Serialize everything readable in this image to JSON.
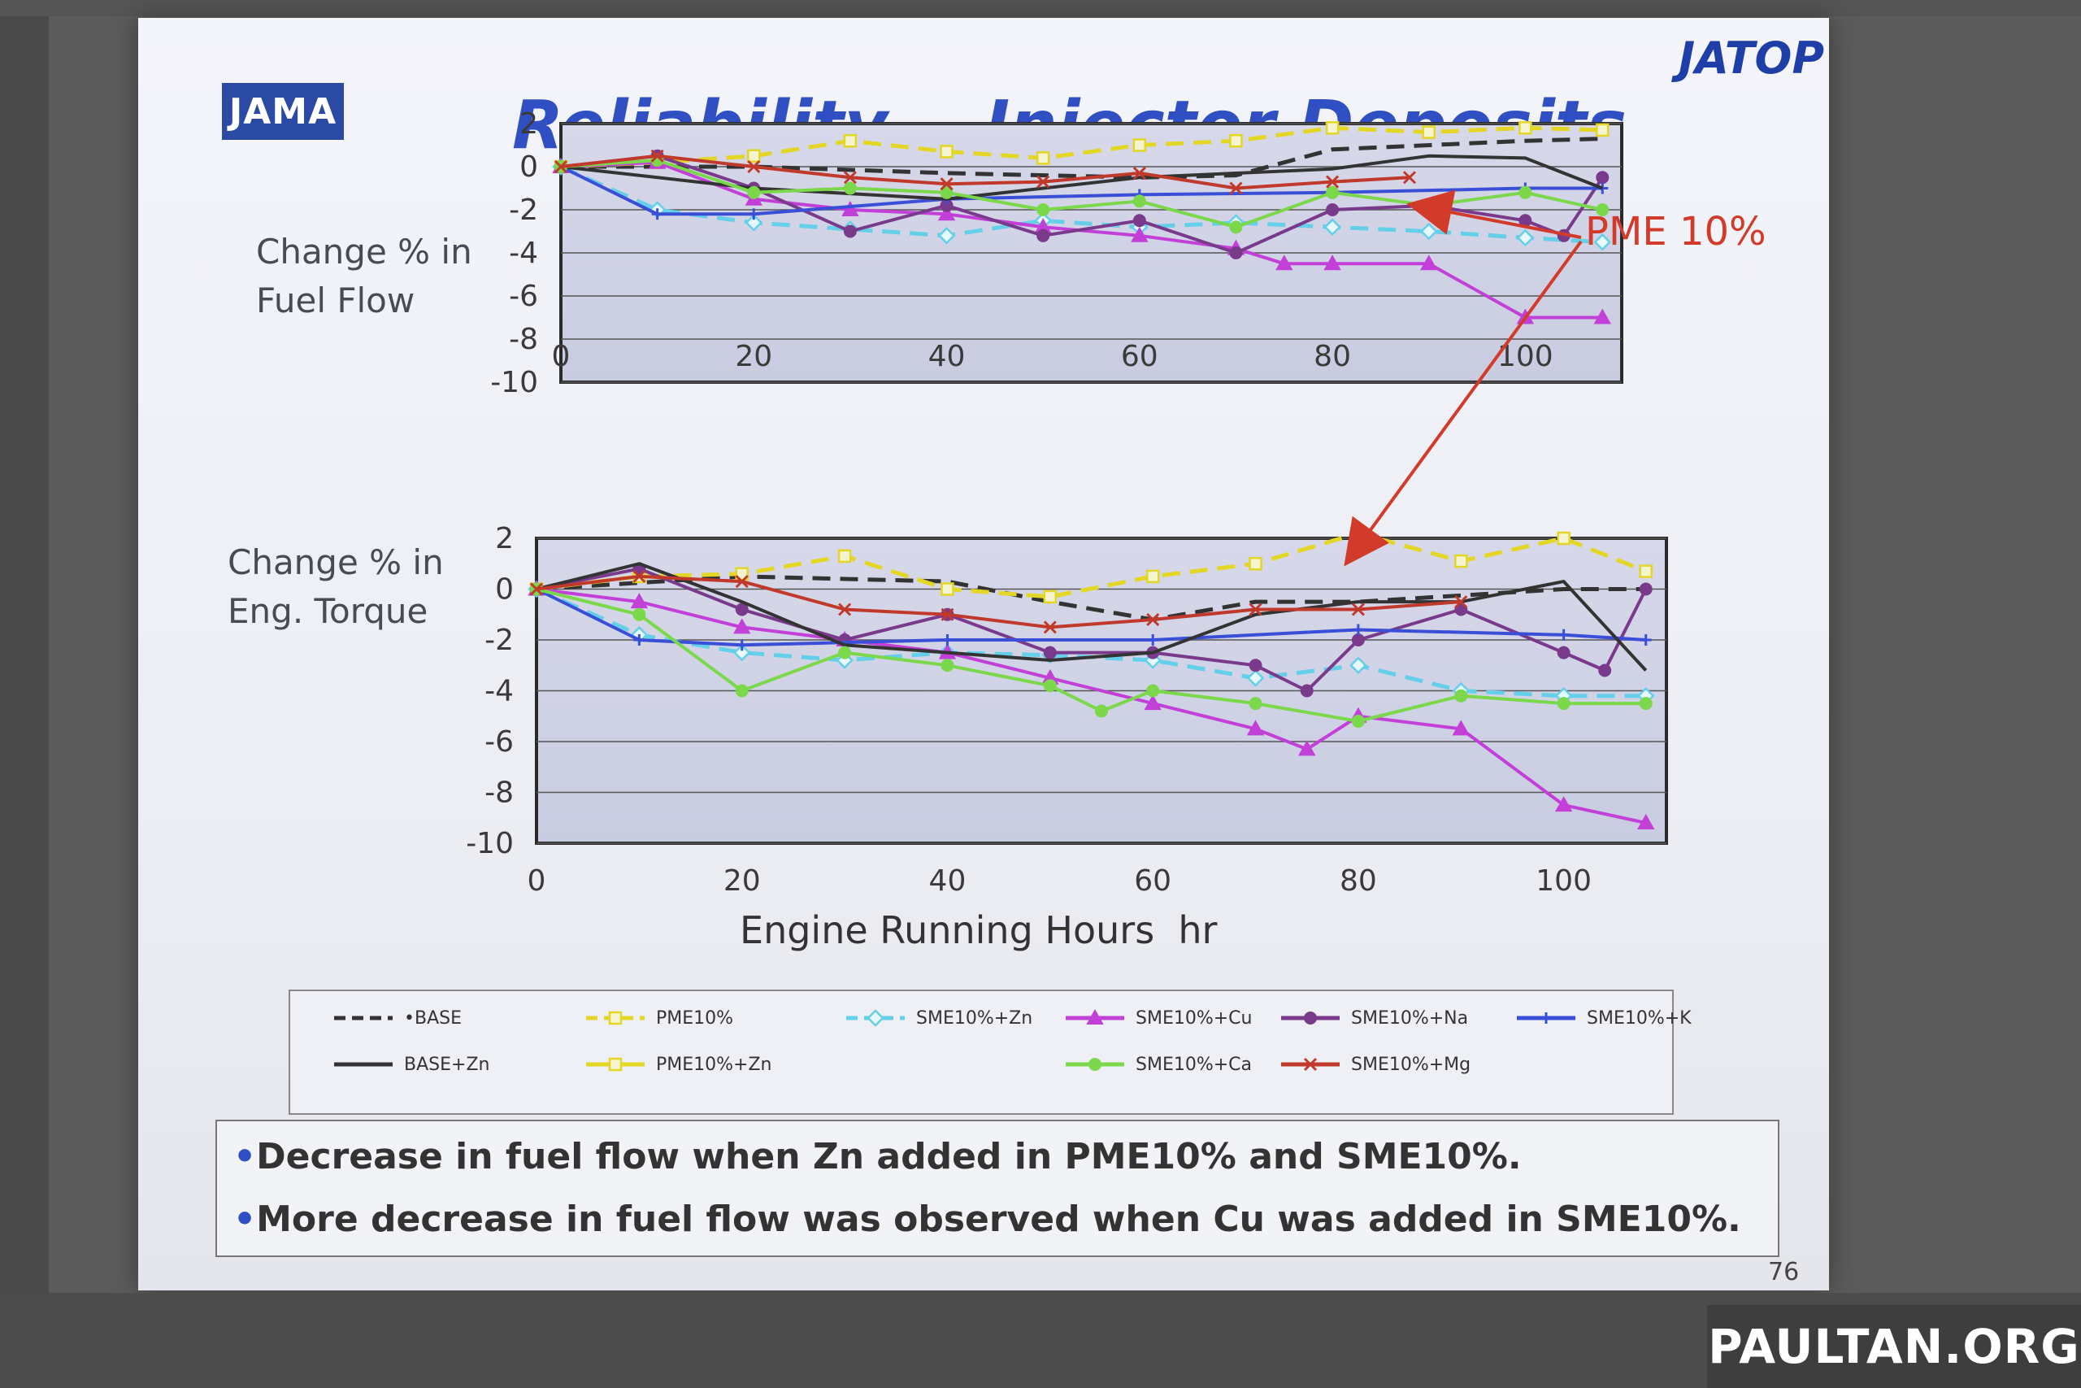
{
  "slide": {
    "logo_left": "JAMA",
    "logo_right": "JATOP",
    "title": "Reliability  - Injector Deposits",
    "page_number": "76",
    "annotation": "PME 10%",
    "notes": [
      "Decrease in fuel flow when Zn added in PME10% and SME10%.",
      "More decrease in fuel flow was observed when Cu was added in SME10%."
    ],
    "bullet": "•"
  },
  "watermark": "PAULTAN.ORG",
  "colors": {
    "BASE": "#333333",
    "PME10": "#e3d624",
    "SME_Zn": "#64cfe8",
    "SME_Cu": "#c240d8",
    "SME_Na": "#7a3a8c",
    "SME_K": "#3a4fd8",
    "SME_Ca": "#7ad84a",
    "SME_Mg": "#c0392b",
    "annotation": "#d23a2a"
  },
  "legend": [
    {
      "key": "BASE",
      "label": "•BASE",
      "style": "dashed",
      "marker": "none"
    },
    {
      "key": "PME10",
      "label": "PME10%",
      "style": "dashed",
      "marker": "square"
    },
    {
      "key": "SME_Zn",
      "label": "SME10%+Zn",
      "style": "dashed",
      "marker": "diamond"
    },
    {
      "key": "SME_Cu",
      "label": "SME10%+Cu",
      "style": "solid",
      "marker": "triangle"
    },
    {
      "key": "SME_Na",
      "label": "SME10%+Na",
      "style": "solid",
      "marker": "circle"
    },
    {
      "key": "SME_K",
      "label": "SME10%+K",
      "style": "solid",
      "marker": "plus"
    },
    {
      "key": "BASE",
      "label": "BASE+Zn",
      "style": "solid",
      "marker": "none"
    },
    {
      "key": "PME10",
      "label": "PME10%+Zn",
      "style": "solid",
      "marker": "square"
    },
    {
      "key": "SME_Ca",
      "label": "SME10%+Ca",
      "style": "solid",
      "marker": "circle"
    },
    {
      "key": "SME_Mg",
      "label": "SME10%+Mg",
      "style": "solid",
      "marker": "cross"
    }
  ],
  "chart_data": [
    {
      "type": "line",
      "ylabel": "Change % in\nFuel Flow",
      "xlabel": "",
      "xlim": [
        0,
        110
      ],
      "ylim": [
        -10,
        2
      ],
      "xticks": [
        0,
        20,
        40,
        60,
        80,
        100
      ],
      "yticks": [
        2,
        0,
        -2,
        -4,
        -6,
        -8,
        -10
      ],
      "series": [
        {
          "name": "•BASE",
          "key": "BASE",
          "style": "dashed",
          "marker": "none",
          "x": [
            0,
            20,
            40,
            60,
            70,
            80,
            100,
            108
          ],
          "y": [
            0,
            0,
            -0.3,
            -0.5,
            -0.4,
            0.8,
            1.2,
            1.3
          ]
        },
        {
          "name": "PME10%",
          "key": "PME10",
          "style": "dashed",
          "marker": "square",
          "x": [
            0,
            10,
            20,
            30,
            40,
            50,
            60,
            70,
            80,
            90,
            100,
            108
          ],
          "y": [
            0,
            0.2,
            0.5,
            1.2,
            0.7,
            0.4,
            1.0,
            1.2,
            1.8,
            1.6,
            1.8,
            1.7
          ]
        },
        {
          "name": "SME10%+Zn",
          "key": "SME_Zn",
          "style": "dashed",
          "marker": "diamond",
          "x": [
            0,
            10,
            20,
            30,
            40,
            50,
            60,
            70,
            80,
            90,
            100,
            108
          ],
          "y": [
            0,
            -2.0,
            -2.6,
            -2.9,
            -3.2,
            -2.5,
            -2.8,
            -2.6,
            -2.8,
            -3.0,
            -3.3,
            -3.5
          ]
        },
        {
          "name": "SME10%+Cu",
          "key": "SME_Cu",
          "style": "solid",
          "marker": "triangle",
          "x": [
            0,
            10,
            20,
            30,
            40,
            50,
            60,
            70,
            75,
            80,
            90,
            100,
            108
          ],
          "y": [
            0,
            0.2,
            -1.5,
            -2.0,
            -2.2,
            -2.8,
            -3.2,
            -3.8,
            -4.5,
            -4.5,
            -4.5,
            -7.0,
            -7.0
          ]
        },
        {
          "name": "SME10%+Na",
          "key": "SME_Na",
          "style": "solid",
          "marker": "circle",
          "x": [
            0,
            10,
            20,
            30,
            40,
            50,
            60,
            70,
            80,
            90,
            100,
            104,
            108
          ],
          "y": [
            0,
            0.5,
            -1.0,
            -3.0,
            -1.8,
            -3.2,
            -2.5,
            -4.0,
            -2.0,
            -1.8,
            -2.5,
            -3.2,
            -0.5
          ]
        },
        {
          "name": "SME10%+K",
          "key": "SME_K",
          "style": "solid",
          "marker": "plus",
          "x": [
            0,
            10,
            20,
            40,
            60,
            80,
            100,
            108
          ],
          "y": [
            0,
            -2.2,
            -2.2,
            -1.5,
            -1.3,
            -1.2,
            -1.0,
            -1.0
          ]
        },
        {
          "name": "BASE+Zn",
          "key": "BASE",
          "style": "solid",
          "marker": "none",
          "x": [
            0,
            20,
            40,
            60,
            80,
            90,
            100,
            108
          ],
          "y": [
            0,
            -1.0,
            -1.5,
            -0.5,
            -0.1,
            0.5,
            0.4,
            -1.0
          ]
        },
        {
          "name": "SME10%+Ca",
          "key": "SME_Ca",
          "style": "solid",
          "marker": "circle",
          "x": [
            0,
            10,
            20,
            30,
            40,
            50,
            60,
            70,
            80,
            90,
            100,
            108
          ],
          "y": [
            0,
            0.3,
            -1.2,
            -1.0,
            -1.2,
            -2.0,
            -1.6,
            -2.8,
            -1.2,
            -1.8,
            -1.2,
            -2.0
          ]
        },
        {
          "name": "SME10%+Mg",
          "key": "SME_Mg",
          "style": "solid",
          "marker": "cross",
          "x": [
            0,
            10,
            20,
            30,
            40,
            50,
            60,
            70,
            80,
            88
          ],
          "y": [
            0,
            0.5,
            0.0,
            -0.5,
            -0.8,
            -0.7,
            -0.3,
            -1.0,
            -0.7,
            -0.5
          ]
        }
      ]
    },
    {
      "type": "line",
      "ylabel": "Change % in\nEng. Torque",
      "xlabel": "Engine Running Hours  hr",
      "xlim": [
        0,
        110
      ],
      "ylim": [
        -10,
        2
      ],
      "xticks": [
        0,
        20,
        40,
        60,
        80,
        100
      ],
      "yticks": [
        2,
        0,
        -2,
        -4,
        -6,
        -8,
        -10
      ],
      "series": [
        {
          "name": "•BASE",
          "key": "BASE",
          "style": "dashed",
          "marker": "none",
          "x": [
            0,
            20,
            40,
            50,
            60,
            70,
            80,
            100,
            108
          ],
          "y": [
            0,
            0.5,
            0.3,
            -0.5,
            -1.2,
            -0.5,
            -0.5,
            0.0,
            0.0
          ]
        },
        {
          "name": "PME10%",
          "key": "PME10",
          "style": "dashed",
          "marker": "square",
          "x": [
            0,
            10,
            20,
            30,
            40,
            50,
            60,
            70,
            80,
            90,
            100,
            108
          ],
          "y": [
            0,
            0.5,
            0.6,
            1.3,
            0.0,
            -0.3,
            0.5,
            1.0,
            2.2,
            1.1,
            2.0,
            0.7
          ]
        },
        {
          "name": "SME10%+Zn",
          "key": "SME_Zn",
          "style": "dashed",
          "marker": "diamond",
          "x": [
            0,
            10,
            20,
            30,
            40,
            50,
            60,
            70,
            80,
            90,
            100,
            108
          ],
          "y": [
            0,
            -1.8,
            -2.5,
            -2.8,
            -2.5,
            -2.6,
            -2.8,
            -3.5,
            -3.0,
            -4.0,
            -4.2,
            -4.2
          ]
        },
        {
          "name": "SME10%+Cu",
          "key": "SME_Cu",
          "style": "solid",
          "marker": "triangle",
          "x": [
            0,
            10,
            20,
            30,
            40,
            50,
            60,
            70,
            75,
            80,
            90,
            100,
            108
          ],
          "y": [
            0,
            -0.5,
            -1.5,
            -2.0,
            -2.5,
            -3.5,
            -4.5,
            -5.5,
            -6.3,
            -5.0,
            -5.5,
            -8.5,
            -9.2
          ]
        },
        {
          "name": "SME10%+Na",
          "key": "SME_Na",
          "style": "solid",
          "marker": "circle",
          "x": [
            0,
            10,
            20,
            30,
            40,
            50,
            60,
            70,
            75,
            80,
            90,
            100,
            104,
            108
          ],
          "y": [
            0,
            0.8,
            -0.8,
            -2.0,
            -1.0,
            -2.5,
            -2.5,
            -3.0,
            -4.0,
            -2.0,
            -0.8,
            -2.5,
            -3.2,
            0.0
          ]
        },
        {
          "name": "SME10%+K",
          "key": "SME_K",
          "style": "solid",
          "marker": "plus",
          "x": [
            0,
            10,
            20,
            40,
            60,
            80,
            100,
            108
          ],
          "y": [
            0,
            -2.0,
            -2.2,
            -2.0,
            -2.0,
            -1.6,
            -1.8,
            -2.0
          ]
        },
        {
          "name": "BASE+Zn",
          "key": "BASE",
          "style": "solid",
          "marker": "none",
          "x": [
            0,
            10,
            20,
            30,
            40,
            50,
            60,
            70,
            80,
            90,
            100,
            108
          ],
          "y": [
            0,
            1.0,
            -0.5,
            -2.2,
            -2.5,
            -2.8,
            -2.5,
            -1.0,
            -0.5,
            -0.5,
            0.3,
            -3.2
          ]
        },
        {
          "name": "SME10%+Ca",
          "key": "SME_Ca",
          "style": "solid",
          "marker": "circle",
          "x": [
            0,
            10,
            20,
            30,
            40,
            50,
            55,
            60,
            70,
            80,
            90,
            100,
            108
          ],
          "y": [
            0,
            -1.0,
            -4.0,
            -2.5,
            -3.0,
            -3.8,
            -4.8,
            -4.0,
            -4.5,
            -5.2,
            -4.2,
            -4.5,
            -4.5
          ]
        },
        {
          "name": "SME10%+Mg",
          "key": "SME_Mg",
          "style": "solid",
          "marker": "cross",
          "x": [
            0,
            10,
            20,
            30,
            40,
            50,
            60,
            70,
            80,
            90
          ],
          "y": [
            0,
            0.5,
            0.3,
            -0.8,
            -1.0,
            -1.5,
            -1.2,
            -0.8,
            -0.8,
            -0.5
          ]
        }
      ]
    }
  ]
}
